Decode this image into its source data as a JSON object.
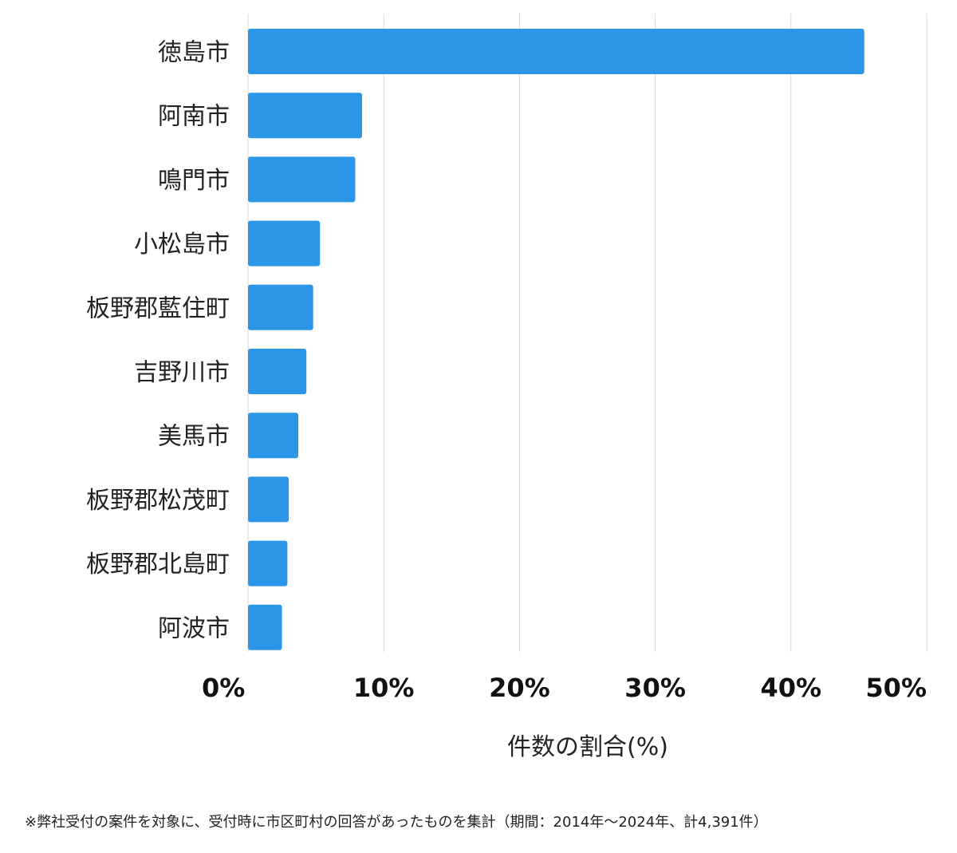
{
  "chart_data": {
    "type": "bar",
    "orientation": "horizontal",
    "categories": [
      "徳島市",
      "阿南市",
      "鳴門市",
      "小松島市",
      "板野郡藍住町",
      "吉野川市",
      "美馬市",
      "板野郡松茂町",
      "板野郡北島町",
      "阿波市"
    ],
    "values": [
      45.4,
      8.4,
      7.9,
      5.3,
      4.8,
      4.3,
      3.7,
      3.0,
      2.9,
      2.5
    ],
    "xlabel": "件数の割合(%)",
    "ylabel": "",
    "xlim": [
      0,
      50
    ],
    "x_ticks": [
      0,
      10,
      20,
      30,
      40,
      50
    ],
    "x_tick_labels": [
      "0%",
      "10%",
      "20%",
      "30%",
      "40%",
      "50%"
    ],
    "grid": "vertical",
    "bar_color": "#2b95e8",
    "grid_color": "#d9d9d9"
  },
  "footnote": "※弊社受付の案件を対象に、受付時に市区町村の回答があったものを集計（期間：2014年〜2024年、計4,391件）"
}
